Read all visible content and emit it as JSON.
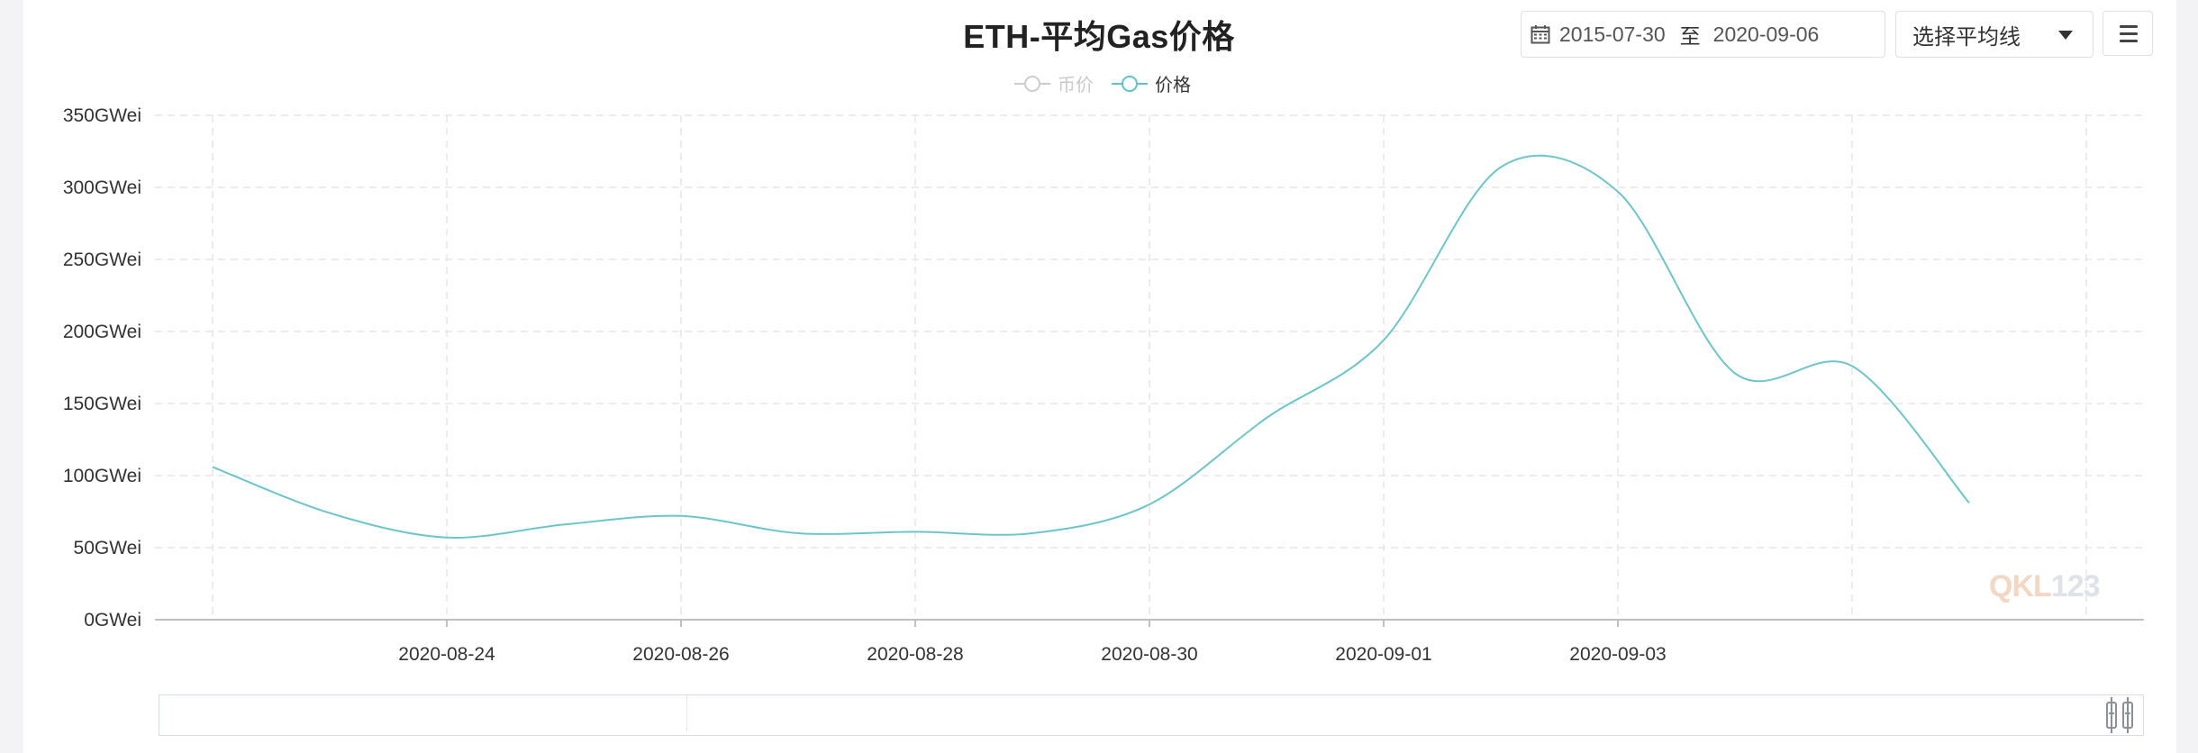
{
  "header": {
    "title": "ETH-平均Gas价格",
    "date_start": "2015-07-30",
    "date_sep": "至",
    "date_end": "2020-09-06",
    "ma_select_label": "选择平均线",
    "icons": [
      "calendar-icon",
      "chevron-down-icon",
      "menu-icon"
    ]
  },
  "legend": [
    {
      "label": "币价",
      "active": false,
      "color": "#cccccc"
    },
    {
      "label": "价格",
      "active": true,
      "color": "#5ec2c8"
    }
  ],
  "watermark": {
    "part1": "QKL",
    "part2": "123"
  },
  "colors": {
    "line": "#6cc5ca",
    "grid": "#e6e6e6",
    "axis": "#bfbfbf",
    "accent": "#5ec2c8"
  },
  "chart_data": {
    "type": "line",
    "title": "ETH-平均Gas价格",
    "series": [
      {
        "name": "价格",
        "x": [
          "2020-08-22",
          "2020-08-23",
          "2020-08-24",
          "2020-08-25",
          "2020-08-26",
          "2020-08-27",
          "2020-08-28",
          "2020-08-29",
          "2020-08-30",
          "2020-08-31",
          "2020-09-01",
          "2020-09-02",
          "2020-09-03",
          "2020-09-04",
          "2020-09-05",
          "2020-09-06"
        ],
        "values": [
          106,
          74,
          57,
          66,
          72,
          60,
          61,
          60,
          80,
          140,
          194,
          314,
          297,
          171,
          176,
          81
        ]
      }
    ],
    "x_tick_labels": [
      "2020-08-24",
      "2020-08-26",
      "2020-08-28",
      "2020-08-30",
      "2020-09-01",
      "2020-09-03"
    ],
    "y_tick_labels": [
      "0GWei",
      "50GWei",
      "100GWei",
      "150GWei",
      "200GWei",
      "250GWei",
      "300GWei",
      "350GWei"
    ],
    "y_unit": "GWei",
    "ylim": [
      0,
      350
    ],
    "grid": true,
    "legend_position": "top-center"
  }
}
